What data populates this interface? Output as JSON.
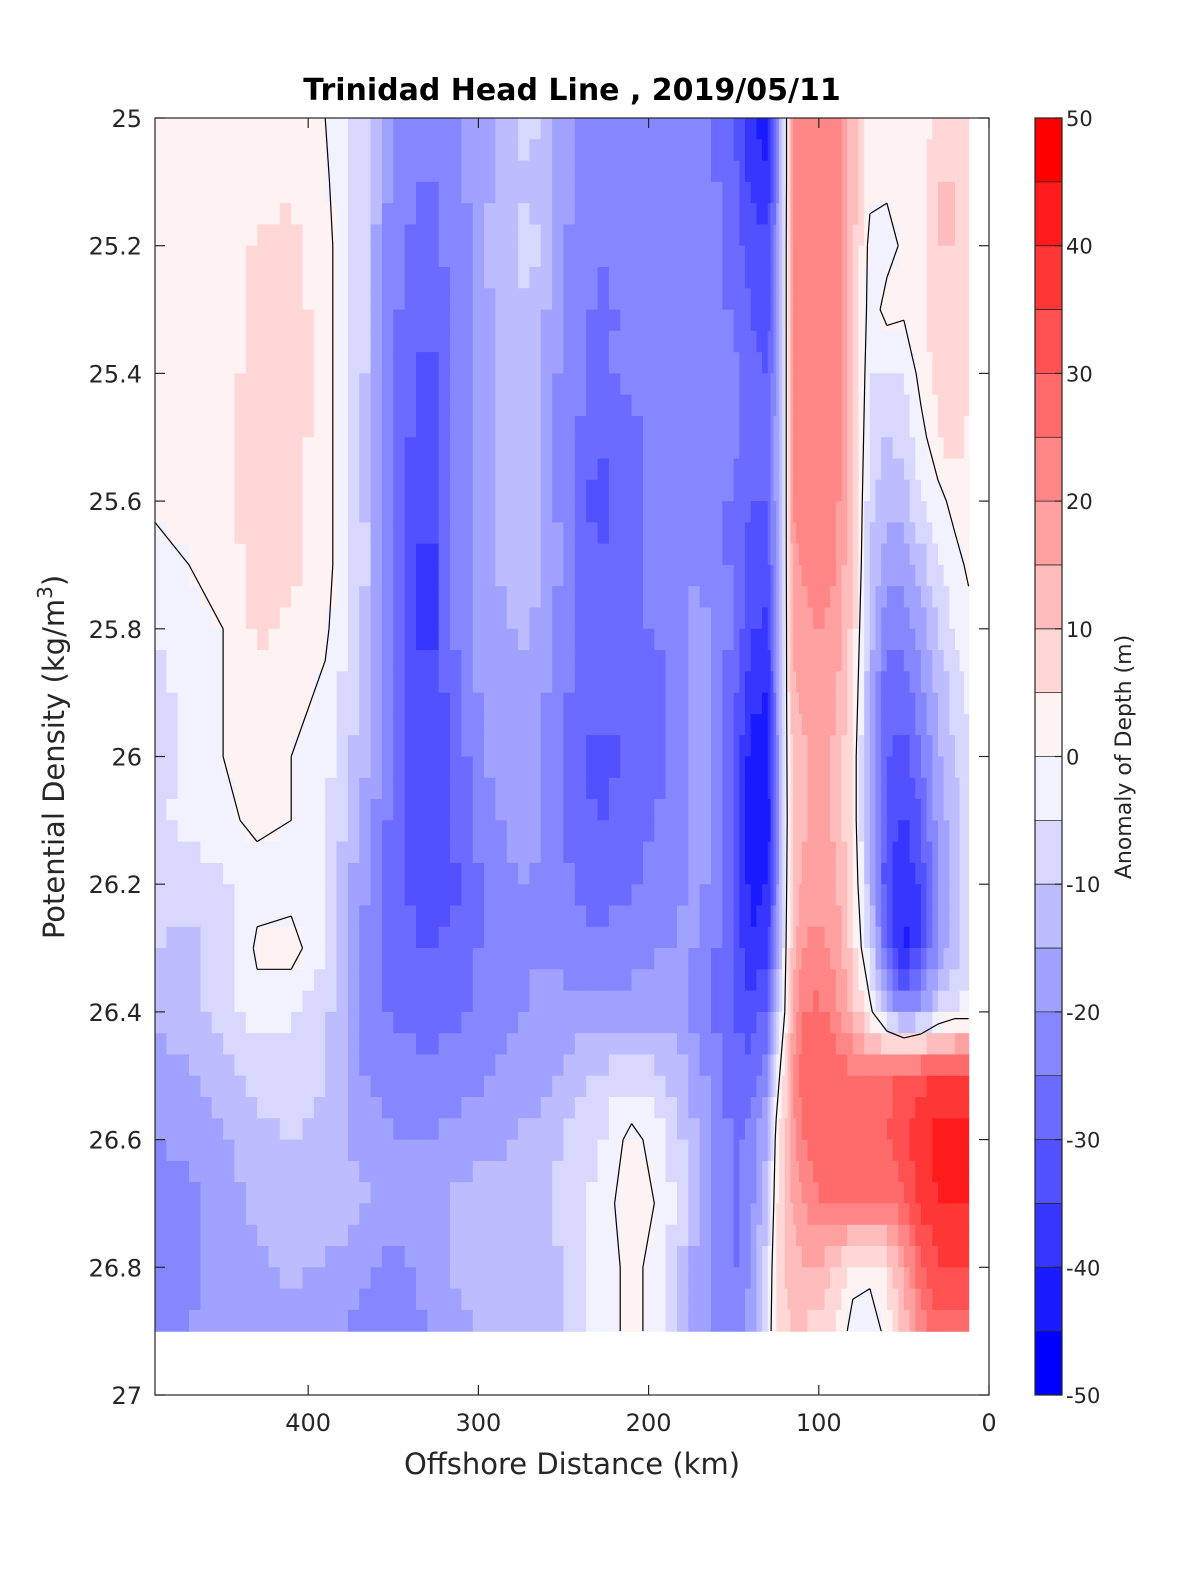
{
  "chart_data": {
    "type": "heatmap",
    "subtype": "filled-contour",
    "title": "Trinidad Head Line , 2019/05/11",
    "xlabel": "Offshore Distance (km)",
    "ylabel_main": "Potential Density (kg/m",
    "ylabel_sup": "3",
    "ylabel_close": ")",
    "x_reversed": true,
    "y_reversed": true,
    "xlim": [
      0,
      490
    ],
    "ylim": [
      25,
      27
    ],
    "xticks": [
      "400",
      "300",
      "200",
      "100",
      "0"
    ],
    "yticks": [
      "25",
      "25.2",
      "25.4",
      "25.6",
      "25.8",
      "26",
      "26.2",
      "26.4",
      "26.6",
      "26.8",
      "27"
    ],
    "colorbar": {
      "label": "Anomaly of Depth (m)",
      "range": [
        -50,
        50
      ],
      "step": 5,
      "ticks": [
        "50",
        "40",
        "30",
        "20",
        "10",
        "0",
        "-10",
        "-20",
        "-30",
        "-40",
        "-50"
      ],
      "colormap": "blue-white-red"
    },
    "zero_contour": "black",
    "x": [
      490,
      470,
      450,
      430,
      410,
      390,
      370,
      350,
      330,
      310,
      290,
      270,
      250,
      230,
      210,
      190,
      170,
      150,
      140,
      130,
      125,
      120,
      115,
      110,
      100,
      90,
      80,
      70,
      60,
      50,
      40,
      30,
      20,
      12
    ],
    "y": [
      25.0,
      25.1,
      25.2,
      25.3,
      25.4,
      25.5,
      25.6,
      25.7,
      25.8,
      25.9,
      26.0,
      26.1,
      26.2,
      26.3,
      26.4,
      26.5,
      26.6,
      26.7,
      26.8,
      26.9
    ],
    "z": [
      [
        3,
        1,
        2,
        2,
        2,
        0,
        -6,
        -20,
        -24,
        -20,
        -14,
        -8,
        -18,
        -24,
        -22,
        -20,
        -22,
        -30,
        -40,
        -42,
        -25,
        -5,
        20,
        24,
        25,
        24,
        12,
        3,
        2,
        1,
        1,
        8,
        10,
        5
      ],
      [
        3,
        1,
        2,
        2,
        4,
        1,
        -7,
        -22,
        -26,
        -21,
        -14,
        -10,
        -18,
        -24,
        -22,
        -20,
        -22,
        -28,
        -36,
        -40,
        -24,
        -5,
        20,
        24,
        25,
        24,
        12,
        2,
        1,
        2,
        2,
        10,
        10,
        6
      ],
      [
        3,
        1,
        2,
        6,
        7,
        2,
        -7,
        -24,
        -27,
        -22,
        -13,
        -7,
        -20,
        -25,
        -23,
        -21,
        -20,
        -28,
        -32,
        -34,
        -22,
        -4,
        20,
        24,
        25,
        24,
        12,
        -2,
        -2,
        1,
        2,
        10,
        10,
        8
      ],
      [
        3,
        1,
        2,
        7,
        8,
        2,
        -7,
        -24,
        -30,
        -22,
        -14,
        -10,
        -20,
        -26,
        -24,
        -21,
        -20,
        -26,
        -30,
        -33,
        -22,
        -4,
        20,
        24,
        25,
        24,
        12,
        -3,
        2,
        1,
        2,
        9,
        9,
        8
      ],
      [
        3,
        1,
        2,
        8,
        8,
        2,
        -7,
        -25,
        -32,
        -22,
        -14,
        -12,
        -22,
        -26,
        -24,
        -22,
        -20,
        -24,
        -28,
        -30,
        -20,
        -4,
        20,
        24,
        25,
        24,
        12,
        -5,
        -6,
        -5,
        2,
        7,
        8,
        6
      ],
      [
        2,
        1,
        2,
        8,
        8,
        2,
        -7,
        -26,
        -34,
        -22,
        -14,
        -13,
        -22,
        -30,
        -26,
        -22,
        -20,
        -24,
        -28,
        -28,
        -18,
        -4,
        20,
        24,
        25,
        24,
        12,
        -7,
        -10,
        -8,
        -2,
        4,
        8,
        4
      ],
      [
        1,
        1,
        2,
        9,
        7,
        2,
        -7,
        -26,
        -36,
        -22,
        -14,
        -12,
        -22,
        -32,
        -26,
        -22,
        -22,
        -26,
        -30,
        -30,
        -18,
        -4,
        20,
        22,
        23,
        22,
        10,
        -8,
        -14,
        -12,
        -6,
        -2,
        2,
        2
      ],
      [
        -2,
        0,
        1,
        8,
        6,
        2,
        -7,
        -24,
        -38,
        -22,
        -15,
        -12,
        -21,
        -30,
        -26,
        -22,
        -20,
        -26,
        -32,
        -32,
        -18,
        -4,
        18,
        20,
        22,
        20,
        10,
        -10,
        -18,
        -18,
        -12,
        -6,
        -2,
        1
      ],
      [
        -5,
        -1,
        0,
        6,
        4,
        1,
        -8,
        -24,
        -38,
        -22,
        -16,
        -14,
        -22,
        -28,
        -26,
        -24,
        -18,
        -26,
        -34,
        -36,
        -20,
        -4,
        16,
        18,
        20,
        18,
        8,
        -12,
        -24,
        -24,
        -18,
        -10,
        -4,
        -2
      ],
      [
        -8,
        -2,
        0,
        4,
        2,
        -1,
        -10,
        -25,
        -36,
        -24,
        -16,
        -16,
        -24,
        -28,
        -28,
        -26,
        -18,
        -28,
        -38,
        -40,
        -22,
        -4,
        14,
        16,
        18,
        16,
        6,
        -14,
        -28,
        -28,
        -22,
        -14,
        -8,
        -4
      ],
      [
        -10,
        -4,
        0,
        2,
        0,
        -3,
        -12,
        -26,
        -36,
        -26,
        -18,
        -18,
        -26,
        -32,
        -30,
        -26,
        -18,
        -30,
        -42,
        -42,
        -24,
        -4,
        12,
        14,
        16,
        14,
        4,
        -16,
        -30,
        -32,
        -26,
        -16,
        -10,
        -6
      ],
      [
        -6,
        -3,
        -1,
        1,
        0,
        -4,
        -14,
        -27,
        -35,
        -28,
        -20,
        -18,
        -26,
        -30,
        -28,
        -24,
        -18,
        -30,
        -44,
        -44,
        -26,
        -4,
        10,
        14,
        16,
        14,
        4,
        -16,
        -32,
        -36,
        -30,
        -18,
        -12,
        -8
      ],
      [
        -8,
        -8,
        -6,
        -2,
        -2,
        -6,
        -18,
        -28,
        -34,
        -30,
        -22,
        -20,
        -24,
        -28,
        -26,
        -22,
        -18,
        -30,
        -42,
        -40,
        -24,
        -3,
        10,
        16,
        18,
        16,
        6,
        -14,
        -34,
        -40,
        -34,
        -20,
        -12,
        -8
      ],
      [
        -10,
        -12,
        -8,
        1,
        2,
        -4,
        -20,
        -28,
        -30,
        -28,
        -22,
        -20,
        -22,
        -24,
        -22,
        -20,
        -20,
        -30,
        -40,
        -36,
        -20,
        -2,
        12,
        20,
        22,
        18,
        8,
        -8,
        -30,
        -42,
        -34,
        -20,
        -12,
        -8
      ],
      [
        -14,
        -12,
        -8,
        -2,
        -4,
        -8,
        -22,
        -26,
        -28,
        -26,
        -22,
        -20,
        -18,
        -18,
        -18,
        -18,
        -22,
        -30,
        -34,
        -28,
        -12,
        0,
        16,
        24,
        26,
        22,
        12,
        2,
        -12,
        -22,
        -18,
        -8,
        -4,
        -4
      ],
      [
        -18,
        -16,
        -12,
        -8,
        -8,
        -10,
        -20,
        -22,
        -24,
        -22,
        -20,
        -18,
        -14,
        -10,
        -6,
        -10,
        -18,
        -28,
        -28,
        -20,
        -4,
        6,
        20,
        28,
        30,
        30,
        26,
        24,
        28,
        32,
        34,
        34,
        34,
        34
      ],
      [
        -20,
        -18,
        -16,
        -12,
        -10,
        -12,
        -16,
        -20,
        -20,
        -18,
        -16,
        -14,
        -10,
        -6,
        2,
        -4,
        -16,
        -26,
        -24,
        -14,
        2,
        10,
        18,
        24,
        28,
        30,
        30,
        30,
        30,
        34,
        38,
        42,
        42,
        42
      ],
      [
        -24,
        -22,
        -18,
        -14,
        -10,
        -12,
        -14,
        -18,
        -16,
        -14,
        -12,
        -12,
        -8,
        -4,
        4,
        -2,
        -16,
        -26,
        -22,
        -10,
        4,
        10,
        16,
        20,
        24,
        26,
        26,
        24,
        24,
        30,
        36,
        40,
        40,
        40
      ],
      [
        -24,
        -22,
        -18,
        -16,
        -14,
        -16,
        -18,
        -22,
        -18,
        -14,
        -12,
        -12,
        -10,
        -4,
        2,
        -4,
        -18,
        -26,
        -20,
        -6,
        6,
        10,
        12,
        14,
        14,
        10,
        2,
        2,
        6,
        16,
        28,
        34,
        34,
        34
      ],
      [
        -20,
        -20,
        -18,
        -18,
        -16,
        -18,
        -22,
        -26,
        -20,
        -16,
        -14,
        -12,
        -10,
        -4,
        2,
        -4,
        -18,
        -24,
        -18,
        -4,
        6,
        8,
        10,
        10,
        8,
        4,
        -2,
        -4,
        2,
        12,
        22,
        28,
        28,
        28
      ]
    ]
  }
}
